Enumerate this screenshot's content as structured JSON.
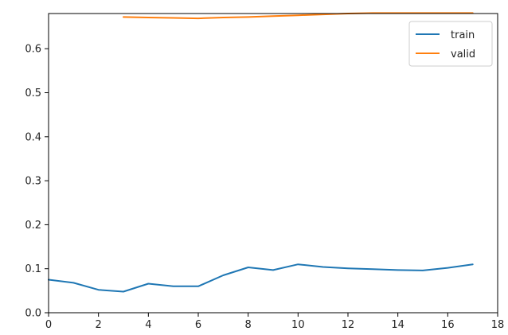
{
  "chart_data": {
    "type": "line",
    "title": "",
    "xlabel": "",
    "ylabel": "",
    "xlim": [
      0,
      18
    ],
    "ylim": [
      0,
      0.68
    ],
    "xticks": [
      0,
      2,
      4,
      6,
      8,
      10,
      12,
      14,
      16,
      18
    ],
    "yticks": [
      0.0,
      0.1,
      0.2,
      0.3,
      0.4,
      0.5,
      0.6
    ],
    "xtick_labels": [
      "0",
      "2",
      "4",
      "6",
      "8",
      "10",
      "12",
      "14",
      "16",
      "18"
    ],
    "ytick_labels": [
      "0.0",
      "0.1",
      "0.2",
      "0.3",
      "0.4",
      "0.5",
      "0.6"
    ],
    "grid": false,
    "legend_position": "top-right",
    "series": [
      {
        "name": "train",
        "color": "#1f77b4",
        "x": [
          0,
          1,
          2,
          3,
          4,
          5,
          6,
          7,
          8,
          9,
          10,
          11,
          12,
          13,
          14,
          15,
          16,
          17
        ],
        "y": [
          0.075,
          0.068,
          0.052,
          0.048,
          0.066,
          0.06,
          0.06,
          0.085,
          0.103,
          0.097,
          0.11,
          0.104,
          0.101,
          0.099,
          0.097,
          0.096,
          0.102,
          0.11
        ]
      },
      {
        "name": "valid",
        "color": "#ff7f0e",
        "x": [
          3,
          4,
          5,
          6,
          7,
          8,
          9,
          10,
          11,
          12,
          13,
          14,
          15,
          16,
          17
        ],
        "y": [
          0.672,
          0.671,
          0.67,
          0.669,
          0.671,
          0.672,
          0.674,
          0.676,
          0.678,
          0.68,
          0.681,
          0.681,
          0.681,
          0.681,
          0.681
        ]
      }
    ]
  }
}
